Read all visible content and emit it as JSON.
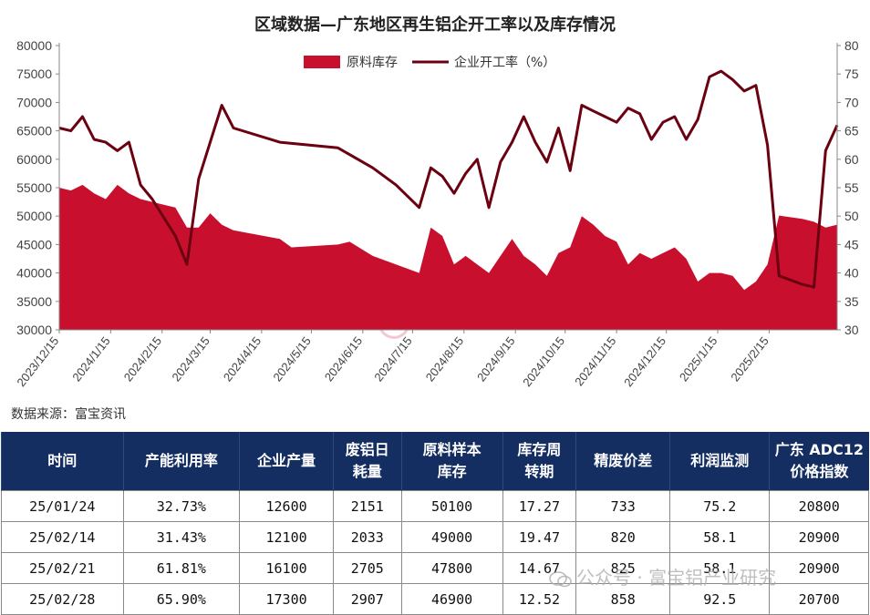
{
  "chart_data": {
    "type": "area+line",
    "title": "区域数据—广东地区再生铝企开工率以及库存情况",
    "source": "数据来源：富宝资讯",
    "watermark": "富宝资讯",
    "legend": {
      "placement": "top-center",
      "items": [
        "原料库存",
        "企业开工率（%）"
      ]
    },
    "left_axis": {
      "ylim": [
        30000,
        80000
      ],
      "ticks": [
        "30000",
        "35000",
        "40000",
        "45000",
        "50000",
        "55000",
        "60000",
        "65000",
        "70000",
        "75000",
        "80000"
      ]
    },
    "right_axis": {
      "ylim": [
        30,
        80
      ],
      "ticks": [
        "30",
        "35",
        "40",
        "45",
        "50",
        "55",
        "60",
        "65",
        "70",
        "75",
        "80"
      ]
    },
    "x_tick_labels": [
      "2023/12/15",
      "2024/1/15",
      "2024/2/15",
      "2024/3/15",
      "2024/4/15",
      "2024/5/15",
      "2024/6/15",
      "2024/7/15",
      "2024/8/15",
      "2024/9/15",
      "2024/10/15",
      "2024/11/15",
      "2024/12/15",
      "2025/1/15",
      "2025/2/15"
    ],
    "colors": {
      "inventory": "#c8102e",
      "rate": "#6b0010",
      "header": "#142e62"
    },
    "series": [
      {
        "name": "原料库存",
        "kind": "area",
        "axis": "left",
        "points": [
          [
            "2023-12-15",
            55000
          ],
          [
            "2023-12-22",
            54500
          ],
          [
            "2023-12-29",
            55500
          ],
          [
            "2024-01-05",
            54000
          ],
          [
            "2024-01-12",
            53000
          ],
          [
            "2024-01-19",
            55500
          ],
          [
            "2024-01-26",
            54000
          ],
          [
            "2024-02-02",
            53000
          ],
          [
            "2024-02-09",
            52500
          ],
          [
            "2024-02-16",
            52000
          ],
          [
            "2024-02-23",
            51500
          ],
          [
            "2024-03-01",
            48000
          ],
          [
            "2024-03-08",
            48000
          ],
          [
            "2024-03-15",
            50500
          ],
          [
            "2024-03-22",
            48500
          ],
          [
            "2024-03-29",
            47500
          ],
          [
            "2024-04-26",
            46000
          ],
          [
            "2024-05-03",
            44500
          ],
          [
            "2024-05-31",
            45000
          ],
          [
            "2024-06-07",
            45500
          ],
          [
            "2024-06-21",
            43000
          ],
          [
            "2024-07-05",
            41500
          ],
          [
            "2024-07-19",
            40000
          ],
          [
            "2024-07-26",
            48000
          ],
          [
            "2024-08-02",
            46500
          ],
          [
            "2024-08-09",
            41500
          ],
          [
            "2024-08-16",
            43000
          ],
          [
            "2024-08-23",
            41500
          ],
          [
            "2024-08-30",
            40000
          ],
          [
            "2024-09-06",
            43000
          ],
          [
            "2024-09-13",
            46000
          ],
          [
            "2024-09-20",
            43000
          ],
          [
            "2024-09-27",
            41500
          ],
          [
            "2024-10-04",
            39500
          ],
          [
            "2024-10-11",
            43500
          ],
          [
            "2024-10-18",
            44500
          ],
          [
            "2024-10-25",
            50000
          ],
          [
            "2024-11-01",
            48500
          ],
          [
            "2024-11-08",
            46500
          ],
          [
            "2024-11-15",
            45500
          ],
          [
            "2024-11-22",
            41500
          ],
          [
            "2024-11-29",
            43500
          ],
          [
            "2024-12-06",
            42500
          ],
          [
            "2024-12-13",
            43500
          ],
          [
            "2024-12-20",
            44500
          ],
          [
            "2024-12-27",
            42500
          ],
          [
            "2025-01-03",
            38500
          ],
          [
            "2025-01-10",
            40000
          ],
          [
            "2025-01-17",
            40000
          ],
          [
            "2025-01-24",
            39500
          ],
          [
            "2025-01-31",
            37000
          ],
          [
            "2025-02-07",
            38500
          ],
          [
            "2025-02-14",
            41500
          ],
          [
            "2025-02-21",
            50100
          ],
          [
            "2025-03-07",
            49500
          ],
          [
            "2025-03-14",
            49000
          ],
          [
            "2025-03-21",
            48000
          ],
          [
            "2025-03-28",
            48500
          ]
        ]
      },
      {
        "name": "企业开工率（%）",
        "kind": "line",
        "axis": "right",
        "points": [
          [
            "2023-12-15",
            65.5
          ],
          [
            "2023-12-22",
            65
          ],
          [
            "2023-12-29",
            67.5
          ],
          [
            "2024-01-05",
            63.5
          ],
          [
            "2024-01-12",
            63
          ],
          [
            "2024-01-19",
            61.5
          ],
          [
            "2024-01-26",
            63
          ],
          [
            "2024-02-02",
            55.5
          ],
          [
            "2024-02-09",
            53
          ],
          [
            "2024-02-23",
            46.5
          ],
          [
            "2024-03-01",
            41.5
          ],
          [
            "2024-03-08",
            56.5
          ],
          [
            "2024-03-22",
            69.5
          ],
          [
            "2024-03-29",
            65.5
          ],
          [
            "2024-04-26",
            63
          ],
          [
            "2024-05-31",
            62
          ],
          [
            "2024-06-21",
            58.5
          ],
          [
            "2024-07-05",
            55.5
          ],
          [
            "2024-07-19",
            51.5
          ],
          [
            "2024-07-26",
            58.5
          ],
          [
            "2024-08-02",
            57
          ],
          [
            "2024-08-09",
            54
          ],
          [
            "2024-08-16",
            57.5
          ],
          [
            "2024-08-23",
            60
          ],
          [
            "2024-08-30",
            51.5
          ],
          [
            "2024-09-06",
            59.5
          ],
          [
            "2024-09-13",
            63
          ],
          [
            "2024-09-20",
            67.5
          ],
          [
            "2024-09-27",
            63
          ],
          [
            "2024-10-04",
            59.5
          ],
          [
            "2024-10-11",
            65.5
          ],
          [
            "2024-10-18",
            58
          ],
          [
            "2024-10-25",
            69.5
          ],
          [
            "2024-11-01",
            68.5
          ],
          [
            "2024-11-08",
            67.5
          ],
          [
            "2024-11-15",
            66.5
          ],
          [
            "2024-11-22",
            69
          ],
          [
            "2024-11-29",
            68
          ],
          [
            "2024-12-06",
            63.5
          ],
          [
            "2024-12-13",
            66.5
          ],
          [
            "2024-12-20",
            67.5
          ],
          [
            "2024-12-27",
            63.5
          ],
          [
            "2025-01-03",
            67
          ],
          [
            "2025-01-10",
            74.5
          ],
          [
            "2025-01-17",
            75.5
          ],
          [
            "2025-01-24",
            74
          ],
          [
            "2025-01-31",
            72
          ],
          [
            "2025-02-07",
            73
          ],
          [
            "2025-02-14",
            62.5
          ],
          [
            "2025-02-21",
            39.5
          ],
          [
            "2025-03-07",
            38
          ],
          [
            "2025-03-14",
            37.5
          ],
          [
            "2025-03-21",
            61.5
          ],
          [
            "2025-03-28",
            66
          ]
        ]
      }
    ]
  },
  "table": {
    "headers": [
      [
        "时间"
      ],
      [
        "产能利用率"
      ],
      [
        "企业产量"
      ],
      [
        "废铝日",
        "耗量"
      ],
      [
        "原料样本",
        "库存"
      ],
      [
        "库存周",
        "转期"
      ],
      [
        "精废价差"
      ],
      [
        "利润监测"
      ],
      [
        "广东 ADC12",
        "价格指数"
      ]
    ],
    "rows": [
      [
        "25/01/24",
        "32.73%",
        "12600",
        "2151",
        "50100",
        "17.27",
        "733",
        "75.2",
        "20800"
      ],
      [
        "25/02/14",
        "31.43%",
        "12100",
        "2033",
        "49000",
        "19.47",
        "820",
        "58.1",
        "20900"
      ],
      [
        "25/02/21",
        "61.81%",
        "16100",
        "2705",
        "47800",
        "14.67",
        "825",
        "58.1",
        "20900"
      ],
      [
        "25/02/28",
        "65.90%",
        "17300",
        "2907",
        "46900",
        "12.52",
        "858",
        "92.5",
        "20700"
      ]
    ]
  },
  "bottom_watermark": "公众号 · 富宝铝产业研究"
}
